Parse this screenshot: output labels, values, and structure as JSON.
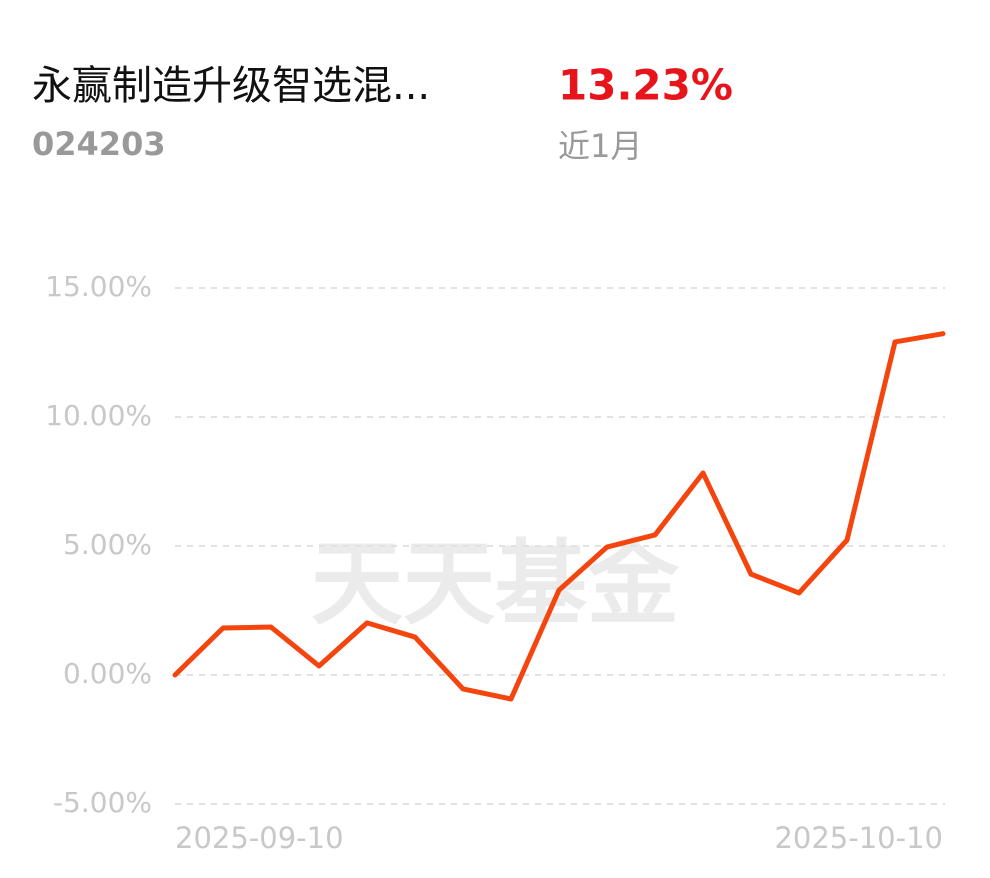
{
  "header": {
    "fund_name": "永赢制造升级智选混...",
    "fund_code": "024203",
    "return": "13.23%",
    "period": "近1月"
  },
  "watermark": "天天基金",
  "chart_data": {
    "type": "line",
    "categories": [
      "2025-09-10",
      null,
      null,
      null,
      null,
      null,
      null,
      null,
      null,
      null,
      null,
      null,
      null,
      null,
      null,
      null,
      "2025-10-10"
    ],
    "series": [
      {
        "color": "#f5450f",
        "values": [
          0.0,
          1.82,
          1.86,
          0.35,
          2.02,
          1.47,
          -0.54,
          -0.93,
          3.29,
          4.96,
          5.43,
          7.83,
          3.91,
          3.18,
          5.23,
          12.91,
          13.23
        ]
      }
    ],
    "ylim": [
      -5,
      15
    ],
    "yticks": [
      {
        "value": -5,
        "label": "-5.00%"
      },
      {
        "value": 0,
        "label": "0.00%"
      },
      {
        "value": 5,
        "label": "5.00%"
      },
      {
        "value": 10,
        "label": "10.00%"
      },
      {
        "value": 15,
        "label": "15.00%"
      }
    ],
    "grid": true
  }
}
